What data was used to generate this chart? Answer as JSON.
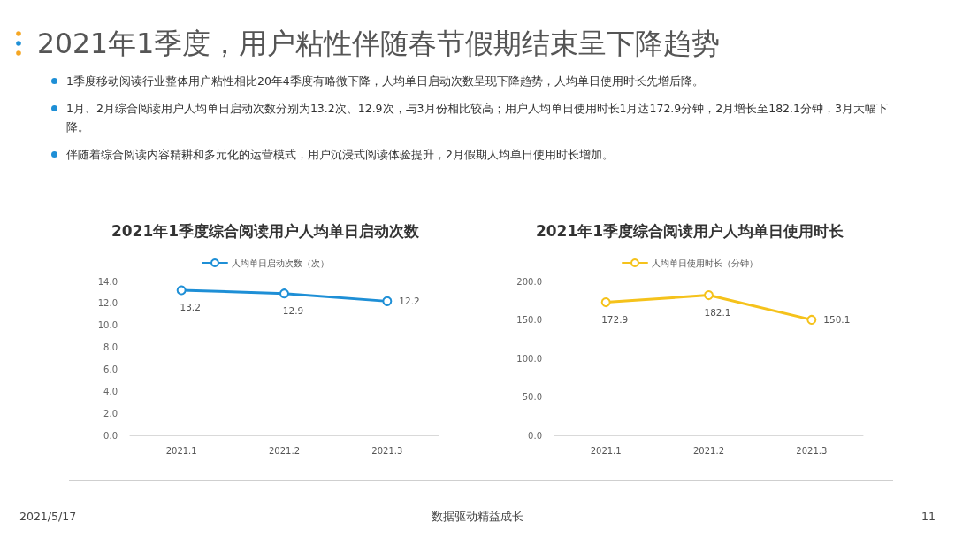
{
  "chart_data": [
    {
      "type": "other",
      "title": "2021年1季度，用户粘性伴随春节假期结束呈下降趋势",
      "annotations": [
        "1季度移动阅读行业整体用户粘性相比20年4季度有略微下降，人均单日启动次数呈现下降趋势，人均单日使用时长先增后降。",
        "1月、2月综合阅读用户人均单日启动次数分别为13.2次、12.9次，与3月份相比较高；用户人均单日使用时长1月达172.9分钟，2月增长至182.1分钟，3月大幅下降。",
        "伴随着综合阅读内容精耕和多元化的运营模式，用户沉浸式阅读体验提升，2月假期人均单日使用时长增加。"
      ]
    },
    {
      "type": "line",
      "title": "2021年1季度综合阅读用户人均单日启动次数",
      "categories": [
        "2021.1",
        "2021.2",
        "2021.3"
      ],
      "series": [
        {
          "name": "人均单日启动次数（次）",
          "color": "#1e8fd6",
          "values": [
            13.2,
            12.9,
            12.2
          ]
        }
      ],
      "ylim": [
        0,
        14
      ],
      "yticks": [
        {
          "value": 0,
          "label": "0.0"
        },
        {
          "value": 2,
          "label": "2.0"
        },
        {
          "value": 4,
          "label": "4.0"
        },
        {
          "value": 6,
          "label": "6.0"
        },
        {
          "value": 8,
          "label": "8.0"
        },
        {
          "value": 10,
          "label": "10.0"
        },
        {
          "value": 12,
          "label": "12.0"
        },
        {
          "value": 14,
          "label": "14.0"
        }
      ],
      "data_labels": true,
      "marker": "circle",
      "line_style": "solid",
      "legend": "top",
      "grid": false
    },
    {
      "type": "line",
      "title": "2021年1季度综合阅读用户人均单日使用时长",
      "categories": [
        "2021.1",
        "2021.2",
        "2021.3"
      ],
      "series": [
        {
          "name": "人均单日使用时长（分钟）",
          "color": "#f5c21b",
          "values": [
            172.9,
            182.1,
            150.1
          ]
        }
      ],
      "ylim": [
        0,
        200
      ],
      "yticks": [
        {
          "value": 0,
          "label": "0.0"
        },
        {
          "value": 50,
          "label": "50.0"
        },
        {
          "value": 100,
          "label": "100.0"
        },
        {
          "value": 150,
          "label": "150.0"
        },
        {
          "value": 200,
          "label": "200.0"
        }
      ],
      "data_labels": true,
      "marker": "circle",
      "line_style": "solid",
      "legend": "top",
      "grid": false
    },
    {
      "type": "other",
      "annotations": [
        "2021/5/17",
        "数据驱动精益成长",
        "11"
      ]
    }
  ]
}
